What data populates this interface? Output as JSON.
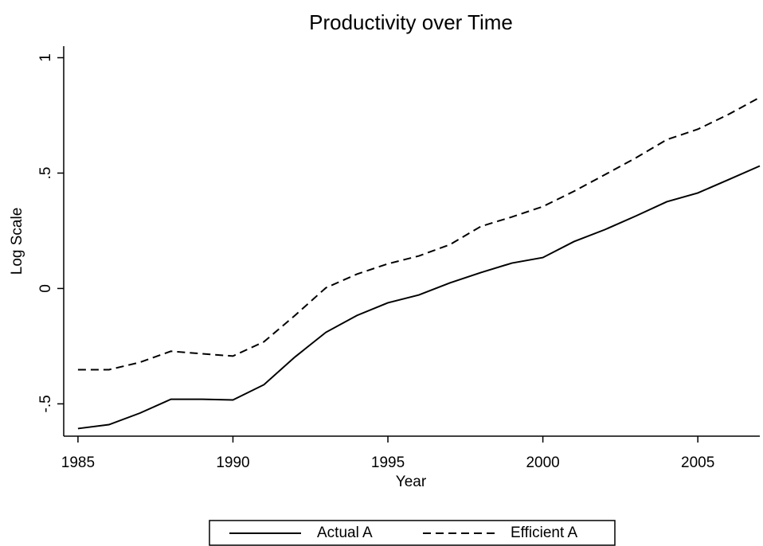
{
  "chart_data": {
    "type": "line",
    "title": "Productivity over Time",
    "xlabel": "Year",
    "ylabel": "Log Scale",
    "x": [
      1985,
      1986,
      1987,
      1988,
      1989,
      1990,
      1991,
      1992,
      1993,
      1994,
      1995,
      1996,
      1997,
      1998,
      1999,
      2000,
      2001,
      2002,
      2003,
      2004,
      2005,
      2006,
      2007
    ],
    "series": [
      {
        "name": "Actual A",
        "color": "#000000",
        "dash": "solid",
        "values": [
          -0.607,
          -0.59,
          -0.54,
          -0.48,
          -0.48,
          -0.483,
          -0.417,
          -0.297,
          -0.19,
          -0.117,
          -0.062,
          -0.028,
          0.024,
          0.069,
          0.11,
          0.134,
          0.203,
          0.255,
          0.314,
          0.376,
          0.414,
          0.472,
          0.531
        ]
      },
      {
        "name": "Efficient A",
        "color": "#000000",
        "dash": "dashed",
        "values": [
          -0.352,
          -0.352,
          -0.32,
          -0.272,
          -0.283,
          -0.293,
          -0.231,
          -0.117,
          0.003,
          0.062,
          0.107,
          0.141,
          0.19,
          0.269,
          0.31,
          0.355,
          0.421,
          0.493,
          0.566,
          0.645,
          0.69,
          0.755,
          0.828
        ]
      }
    ],
    "xlim": [
      1984.54,
      2007
    ],
    "ylim": [
      -0.64,
      1.05
    ],
    "xticks": [
      1985,
      1990,
      1995,
      2000,
      2005
    ],
    "yticks": [
      {
        "value": -0.5,
        "label": "-.5"
      },
      0,
      {
        "value": 0.5,
        "label": ".5"
      },
      1
    ],
    "legend": "bottom"
  }
}
